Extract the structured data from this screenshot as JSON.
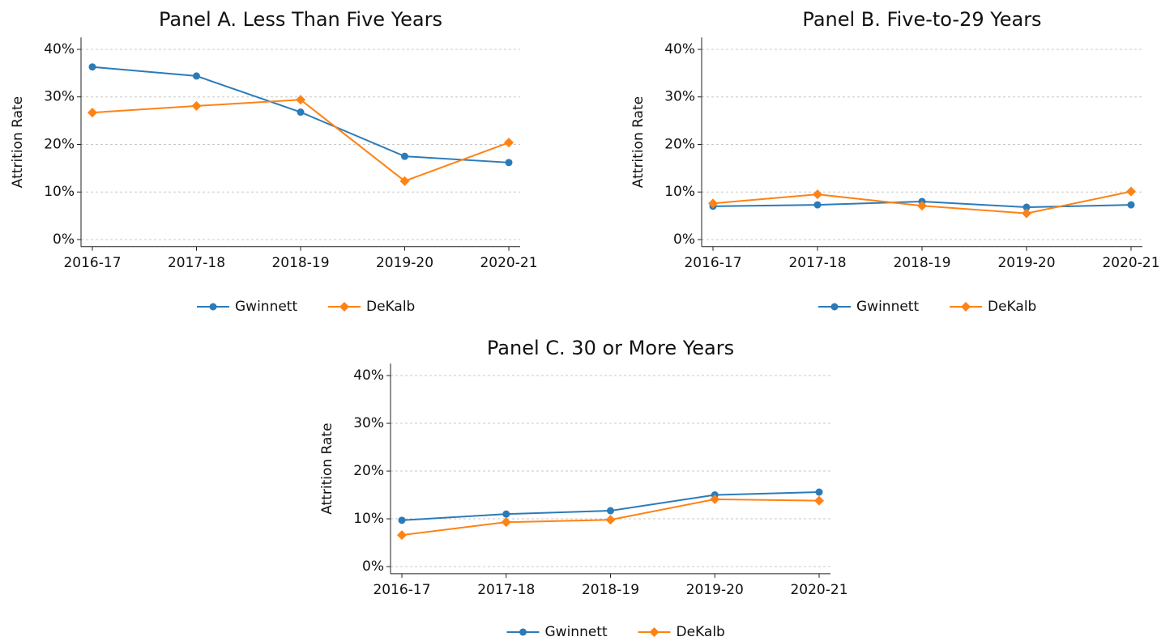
{
  "chart_data": [
    {
      "type": "line",
      "title": "Panel A. Less Than Five Years",
      "y_label": "Attrition Rate",
      "categories": [
        "2016-17",
        "2017-18",
        "2018-19",
        "2019-20",
        "2020-21"
      ],
      "series": [
        {
          "name": "Gwinnett",
          "color": "#2b7bb9",
          "marker": "circle",
          "values": [
            36.3,
            34.4,
            26.8,
            17.5,
            16.2
          ]
        },
        {
          "name": "DeKalb",
          "color": "#ff8214",
          "marker": "diamond",
          "values": [
            26.7,
            28.1,
            29.4,
            12.3,
            20.4
          ]
        }
      ],
      "ylim": [
        -1.5,
        42.5
      ],
      "yticks": [
        {
          "value": 0,
          "label": "0%"
        },
        {
          "value": 10,
          "label": "10%"
        },
        {
          "value": 20,
          "label": "20%"
        },
        {
          "value": 30,
          "label": "30%"
        },
        {
          "value": 40,
          "label": "40%"
        }
      ],
      "grid": true,
      "legend": "bottom"
    },
    {
      "type": "line",
      "title": "Panel B. Five-to-29 Years",
      "y_label": "Attrition Rate",
      "categories": [
        "2016-17",
        "2017-18",
        "2018-19",
        "2019-20",
        "2020-21"
      ],
      "series": [
        {
          "name": "Gwinnett",
          "color": "#2b7bb9",
          "marker": "circle",
          "values": [
            7.0,
            7.3,
            8.0,
            6.8,
            7.3
          ]
        },
        {
          "name": "DeKalb",
          "color": "#ff8214",
          "marker": "diamond",
          "values": [
            7.6,
            9.5,
            7.1,
            5.5,
            10.1
          ]
        }
      ],
      "ylim": [
        -1.5,
        42.5
      ],
      "yticks": [
        {
          "value": 0,
          "label": "0%"
        },
        {
          "value": 10,
          "label": "10%"
        },
        {
          "value": 20,
          "label": "20%"
        },
        {
          "value": 30,
          "label": "30%"
        },
        {
          "value": 40,
          "label": "40%"
        }
      ],
      "grid": true,
      "legend": "bottom"
    },
    {
      "type": "line",
      "title": "Panel C. 30 or More Years",
      "y_label": "Attrition Rate",
      "categories": [
        "2016-17",
        "2017-18",
        "2018-19",
        "2019-20",
        "2020-21"
      ],
      "series": [
        {
          "name": "Gwinnett",
          "color": "#2b7bb9",
          "marker": "circle",
          "values": [
            9.7,
            11.0,
            11.7,
            15.0,
            15.6
          ]
        },
        {
          "name": "DeKalb",
          "color": "#ff8214",
          "marker": "diamond",
          "values": [
            6.6,
            9.3,
            9.8,
            14.1,
            13.8
          ]
        }
      ],
      "ylim": [
        -1.5,
        42.5
      ],
      "yticks": [
        {
          "value": 0,
          "label": "0%"
        },
        {
          "value": 10,
          "label": "10%"
        },
        {
          "value": 20,
          "label": "20%"
        },
        {
          "value": 30,
          "label": "30%"
        },
        {
          "value": 40,
          "label": "40%"
        }
      ],
      "grid": true,
      "legend": "bottom"
    }
  ]
}
